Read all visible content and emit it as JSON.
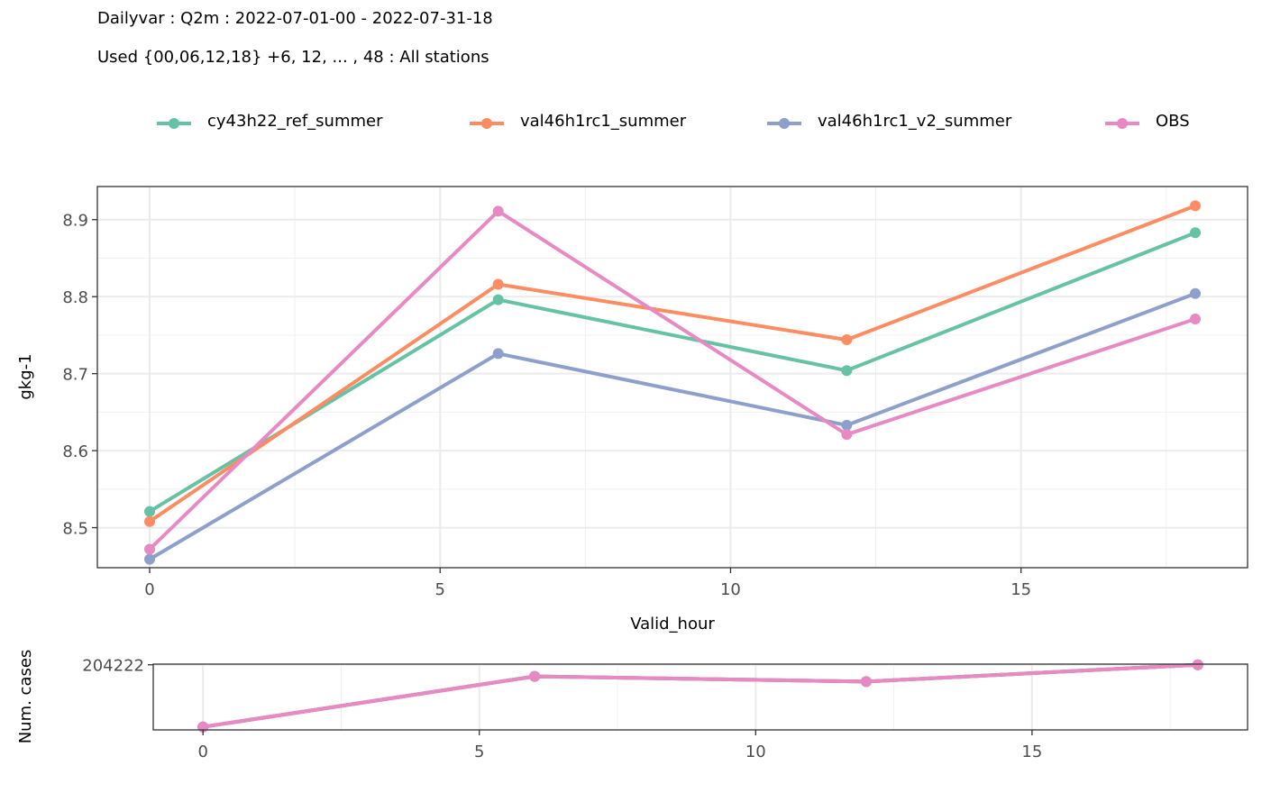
{
  "title_line1": "Dailyvar : Q2m : 2022-07-01-00 - 2022-07-31-18",
  "title_line2": "Used {00,06,12,18} +6, 12, ... , 48 : All stations",
  "legend": [
    {
      "label": "cy43h22_ref_summer",
      "color": "#66C2A5"
    },
    {
      "label": "val46h1rc1_summer",
      "color": "#FC8D62"
    },
    {
      "label": "val46h1rc1_v2_summer",
      "color": "#8DA0CB"
    },
    {
      "label": "OBS",
      "color": "#E78AC3"
    }
  ],
  "chart_data": [
    {
      "type": "line",
      "xlabel": "Valid_hour",
      "ylabel": "gkg-1",
      "x": [
        0,
        6,
        12,
        18
      ],
      "xlim": [
        -0.9,
        18.9
      ],
      "ylim": [
        8.448,
        8.943
      ],
      "xticks": [
        0,
        5,
        10,
        15
      ],
      "yticks": [
        8.5,
        8.6,
        8.7,
        8.8,
        8.9
      ],
      "ytick_labels": [
        "8.5",
        "8.6",
        "8.7",
        "8.8",
        "8.9"
      ],
      "grid": true,
      "legend_position": "top",
      "series": [
        {
          "name": "cy43h22_ref_summer",
          "color": "#66C2A5",
          "values": [
            8.521,
            8.796,
            8.704,
            8.883
          ]
        },
        {
          "name": "val46h1rc1_summer",
          "color": "#FC8D62",
          "values": [
            8.508,
            8.816,
            8.744,
            8.918
          ]
        },
        {
          "name": "val46h1rc1_v2_summer",
          "color": "#8DA0CB",
          "values": [
            8.459,
            8.726,
            8.633,
            8.804
          ]
        },
        {
          "name": "OBS",
          "color": "#E78AC3",
          "values": [
            8.472,
            8.911,
            8.621,
            8.771
          ]
        }
      ]
    },
    {
      "type": "line",
      "xlabel": "",
      "ylabel": "Num. cases",
      "x": [
        0,
        6,
        12,
        18
      ],
      "xlim": [
        -0.9,
        18.9
      ],
      "ylim": [
        199380,
        204270
      ],
      "xticks": [
        0,
        5,
        10,
        15
      ],
      "yticks": [
        204222
      ],
      "ytick_labels": [
        "204222"
      ],
      "grid": true,
      "series": [
        {
          "name": "cy43h22_ref_summer",
          "color": "#66C2A5",
          "values": [
            199600,
            203360,
            202970,
            204222
          ]
        },
        {
          "name": "val46h1rc1_summer",
          "color": "#FC8D62",
          "values": [
            199600,
            203360,
            202970,
            204222
          ]
        },
        {
          "name": "val46h1rc1_v2_summer",
          "color": "#8DA0CB",
          "values": [
            199600,
            203360,
            202970,
            204222
          ]
        },
        {
          "name": "OBS",
          "color": "#E78AC3",
          "values": [
            199600,
            203360,
            202970,
            204222
          ]
        }
      ]
    }
  ]
}
